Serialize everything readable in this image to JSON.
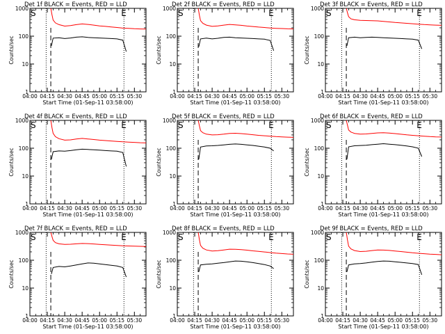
{
  "x_ticks": [
    "04:00",
    "04:15",
    "04:30",
    "04:45",
    "05:00",
    "05:15",
    "05:30"
  ],
  "y_ticks": [
    "1",
    "10",
    "100",
    "1000"
  ],
  "xlabel": "Start Time (01-Sep-11 03:58:00)",
  "ylabel": "Counts/sec",
  "start_marker": "S",
  "end_marker": "E",
  "colors": {
    "events": "#000000",
    "lld": "#ff0000"
  },
  "chart_data": [
    {
      "type": "line",
      "title": "Det 1f BLACK = Events, RED = LLD",
      "x_unit": "minutes after 04:00",
      "xlim": [
        0,
        100
      ],
      "ylim": [
        1,
        1000
      ],
      "yscale": "log",
      "start_line": 14,
      "end_line": 81,
      "dashed_line": 18,
      "series": [
        {
          "name": "Events",
          "color": "#000000",
          "x": [
            18.5,
            20,
            25,
            30,
            35,
            40,
            45,
            50,
            55,
            60,
            65,
            70,
            75,
            80,
            83
          ],
          "y": [
            45,
            85,
            88,
            82,
            86,
            92,
            95,
            90,
            88,
            86,
            84,
            82,
            80,
            72,
            28
          ]
        },
        {
          "name": "LLD",
          "color": "#ff0000",
          "x": [
            18,
            19,
            20,
            22,
            25,
            30,
            35,
            40,
            45,
            50,
            55,
            60,
            65,
            70,
            75,
            80,
            85,
            90,
            95,
            100
          ],
          "y": [
            1000,
            600,
            380,
            300,
            260,
            230,
            240,
            260,
            275,
            265,
            250,
            235,
            225,
            215,
            205,
            195,
            190,
            185,
            182,
            180
          ]
        }
      ]
    },
    {
      "type": "line",
      "title": "Det 2f BLACK = Events, RED = LLD",
      "x_unit": "minutes after 04:00",
      "xlim": [
        0,
        100
      ],
      "ylim": [
        1,
        1000
      ],
      "yscale": "log",
      "start_line": 14,
      "end_line": 81,
      "dashed_line": 18,
      "series": [
        {
          "name": "Events",
          "color": "#000000",
          "x": [
            18.5,
            20,
            25,
            30,
            35,
            40,
            45,
            50,
            55,
            60,
            65,
            70,
            75,
            80,
            83
          ],
          "y": [
            42,
            80,
            85,
            80,
            84,
            90,
            92,
            88,
            86,
            84,
            82,
            80,
            78,
            70,
            30
          ]
        },
        {
          "name": "LLD",
          "color": "#ff0000",
          "x": [
            18,
            19,
            20,
            22,
            25,
            30,
            35,
            40,
            45,
            50,
            55,
            60,
            65,
            70,
            75,
            80,
            85,
            90,
            95,
            100
          ],
          "y": [
            1000,
            580,
            360,
            290,
            250,
            225,
            235,
            250,
            265,
            255,
            245,
            232,
            222,
            212,
            205,
            196,
            192,
            188,
            184,
            182
          ]
        }
      ]
    },
    {
      "type": "line",
      "title": "Det 3f BLACK = Events, RED = LLD",
      "x_unit": "minutes after 04:00",
      "xlim": [
        0,
        100
      ],
      "ylim": [
        1,
        1000
      ],
      "yscale": "log",
      "start_line": 14,
      "end_line": 81,
      "dashed_line": 18,
      "series": [
        {
          "name": "Events",
          "color": "#000000",
          "x": [
            18.5,
            20,
            25,
            30,
            35,
            40,
            45,
            50,
            55,
            60,
            65,
            70,
            75,
            80,
            83
          ],
          "y": [
            45,
            88,
            92,
            88,
            90,
            92,
            90,
            88,
            86,
            84,
            82,
            80,
            78,
            72,
            35
          ]
        },
        {
          "name": "LLD",
          "color": "#ff0000",
          "x": [
            18,
            19,
            20,
            22,
            25,
            30,
            35,
            40,
            45,
            50,
            55,
            60,
            65,
            70,
            75,
            80,
            85,
            90,
            95,
            100
          ],
          "y": [
            1000,
            700,
            500,
            420,
            390,
            370,
            365,
            360,
            355,
            340,
            325,
            310,
            300,
            290,
            280,
            270,
            262,
            255,
            250,
            245
          ]
        }
      ]
    },
    {
      "type": "line",
      "title": "Det 4f BLACK = Events, RED = LLD",
      "x_unit": "minutes after 04:00",
      "xlim": [
        0,
        100
      ],
      "ylim": [
        1,
        1000
      ],
      "yscale": "log",
      "start_line": 14,
      "end_line": 81,
      "dashed_line": 18,
      "series": [
        {
          "name": "Events",
          "color": "#000000",
          "x": [
            18.5,
            20,
            25,
            30,
            35,
            40,
            45,
            50,
            55,
            60,
            65,
            70,
            75,
            80,
            83
          ],
          "y": [
            40,
            75,
            80,
            78,
            82,
            88,
            92,
            90,
            88,
            85,
            82,
            80,
            78,
            70,
            22
          ]
        },
        {
          "name": "LLD",
          "color": "#ff0000",
          "x": [
            18,
            19,
            20,
            22,
            25,
            30,
            35,
            40,
            45,
            50,
            55,
            60,
            65,
            70,
            75,
            80,
            85,
            90,
            95,
            100
          ],
          "y": [
            1000,
            560,
            340,
            260,
            220,
            195,
            200,
            215,
            225,
            215,
            205,
            195,
            188,
            182,
            176,
            170,
            166,
            162,
            158,
            155
          ]
        }
      ]
    },
    {
      "type": "line",
      "title": "Det 5f BLACK = Events, RED = LLD",
      "x_unit": "minutes after 04:00",
      "xlim": [
        0,
        100
      ],
      "ylim": [
        1,
        1000
      ],
      "yscale": "log",
      "start_line": 14,
      "end_line": 81,
      "dashed_line": 18,
      "series": [
        {
          "name": "Events",
          "color": "#000000",
          "x": [
            18.5,
            20,
            25,
            30,
            35,
            40,
            45,
            50,
            55,
            60,
            65,
            70,
            75,
            80,
            83
          ],
          "y": [
            40,
            110,
            120,
            122,
            126,
            132,
            138,
            142,
            138,
            132,
            126,
            118,
            110,
            100,
            80
          ]
        },
        {
          "name": "LLD",
          "color": "#ff0000",
          "x": [
            18,
            19,
            20,
            22,
            25,
            30,
            35,
            40,
            45,
            50,
            55,
            60,
            65,
            70,
            75,
            80,
            85,
            90,
            95,
            100
          ],
          "y": [
            1000,
            650,
            430,
            360,
            320,
            300,
            305,
            320,
            340,
            345,
            335,
            320,
            305,
            290,
            280,
            270,
            262,
            255,
            250,
            246
          ]
        }
      ]
    },
    {
      "type": "line",
      "title": "Det 6f BLACK = Events, RED = LLD",
      "x_unit": "minutes after 04:00",
      "xlim": [
        0,
        100
      ],
      "ylim": [
        1,
        1000
      ],
      "yscale": "log",
      "start_line": 14,
      "end_line": 81,
      "dashed_line": 18,
      "series": [
        {
          "name": "Events",
          "color": "#000000",
          "x": [
            18.5,
            20,
            25,
            30,
            35,
            40,
            45,
            50,
            55,
            60,
            65,
            70,
            75,
            80,
            83
          ],
          "y": [
            40,
            112,
            122,
            125,
            128,
            134,
            140,
            145,
            140,
            134,
            128,
            120,
            112,
            100,
            50
          ]
        },
        {
          "name": "LLD",
          "color": "#ff0000",
          "x": [
            18,
            19,
            20,
            22,
            25,
            30,
            35,
            40,
            45,
            50,
            55,
            60,
            65,
            70,
            75,
            80,
            85,
            90,
            95,
            100
          ],
          "y": [
            1000,
            680,
            450,
            380,
            340,
            320,
            325,
            340,
            355,
            360,
            350,
            335,
            318,
            302,
            290,
            280,
            270,
            262,
            256,
            252
          ]
        }
      ]
    },
    {
      "type": "line",
      "title": "Det 7f BLACK = Events, RED = LLD",
      "x_unit": "minutes after 04:00",
      "xlim": [
        0,
        100
      ],
      "ylim": [
        1,
        1000
      ],
      "yscale": "log",
      "start_line": 14,
      "end_line": 81,
      "dashed_line": 18,
      "series": [
        {
          "name": "Events",
          "color": "#000000",
          "x": [
            18.5,
            20,
            25,
            30,
            35,
            40,
            45,
            50,
            55,
            60,
            65,
            70,
            75,
            80,
            83
          ],
          "y": [
            32,
            55,
            60,
            58,
            62,
            68,
            74,
            80,
            78,
            74,
            70,
            66,
            62,
            55,
            25
          ]
        },
        {
          "name": "LLD",
          "color": "#ff0000",
          "x": [
            18,
            19,
            20,
            22,
            25,
            30,
            35,
            40,
            45,
            50,
            55,
            60,
            65,
            70,
            75,
            80,
            85,
            90,
            95,
            100
          ],
          "y": [
            1000,
            720,
            520,
            430,
            390,
            370,
            375,
            390,
            400,
            395,
            385,
            372,
            360,
            350,
            340,
            332,
            325,
            320,
            316,
            312
          ]
        }
      ]
    },
    {
      "type": "line",
      "title": "Det 8f BLACK = Events, RED = LLD",
      "x_unit": "minutes after 04:00",
      "xlim": [
        0,
        100
      ],
      "ylim": [
        1,
        1000
      ],
      "yscale": "log",
      "start_line": 14,
      "end_line": 81,
      "dashed_line": 18,
      "series": [
        {
          "name": "Events",
          "color": "#000000",
          "x": [
            18.5,
            20,
            25,
            30,
            35,
            40,
            45,
            50,
            55,
            60,
            65,
            70,
            75,
            80,
            83
          ],
          "y": [
            38,
            68,
            72,
            74,
            78,
            82,
            88,
            94,
            92,
            88,
            82,
            76,
            70,
            62,
            50
          ]
        },
        {
          "name": "LLD",
          "color": "#ff0000",
          "x": [
            18,
            19,
            20,
            22,
            25,
            30,
            35,
            40,
            45,
            50,
            55,
            60,
            65,
            70,
            75,
            80,
            85,
            90,
            95,
            100
          ],
          "y": [
            1000,
            560,
            340,
            270,
            235,
            215,
            220,
            235,
            250,
            248,
            240,
            230,
            218,
            208,
            198,
            188,
            180,
            174,
            168,
            164
          ]
        }
      ]
    },
    {
      "type": "line",
      "title": "Det 9f BLACK = Events, RED = LLD",
      "x_unit": "minutes after 04:00",
      "xlim": [
        0,
        100
      ],
      "ylim": [
        1,
        1000
      ],
      "yscale": "log",
      "start_line": 14,
      "end_line": 81,
      "dashed_line": 18,
      "series": [
        {
          "name": "Events",
          "color": "#000000",
          "x": [
            18.5,
            20,
            25,
            30,
            35,
            40,
            45,
            50,
            55,
            60,
            65,
            70,
            75,
            80,
            83
          ],
          "y": [
            38,
            68,
            74,
            76,
            80,
            85,
            90,
            94,
            92,
            88,
            84,
            80,
            76,
            70,
            30
          ]
        },
        {
          "name": "LLD",
          "color": "#ff0000",
          "x": [
            18,
            19,
            20,
            22,
            25,
            30,
            35,
            40,
            45,
            50,
            55,
            60,
            65,
            70,
            75,
            80,
            85,
            90,
            95,
            100
          ],
          "y": [
            1000,
            540,
            320,
            255,
            222,
            205,
            210,
            222,
            235,
            232,
            225,
            215,
            205,
            195,
            185,
            178,
            172,
            166,
            162,
            158
          ]
        }
      ]
    }
  ]
}
